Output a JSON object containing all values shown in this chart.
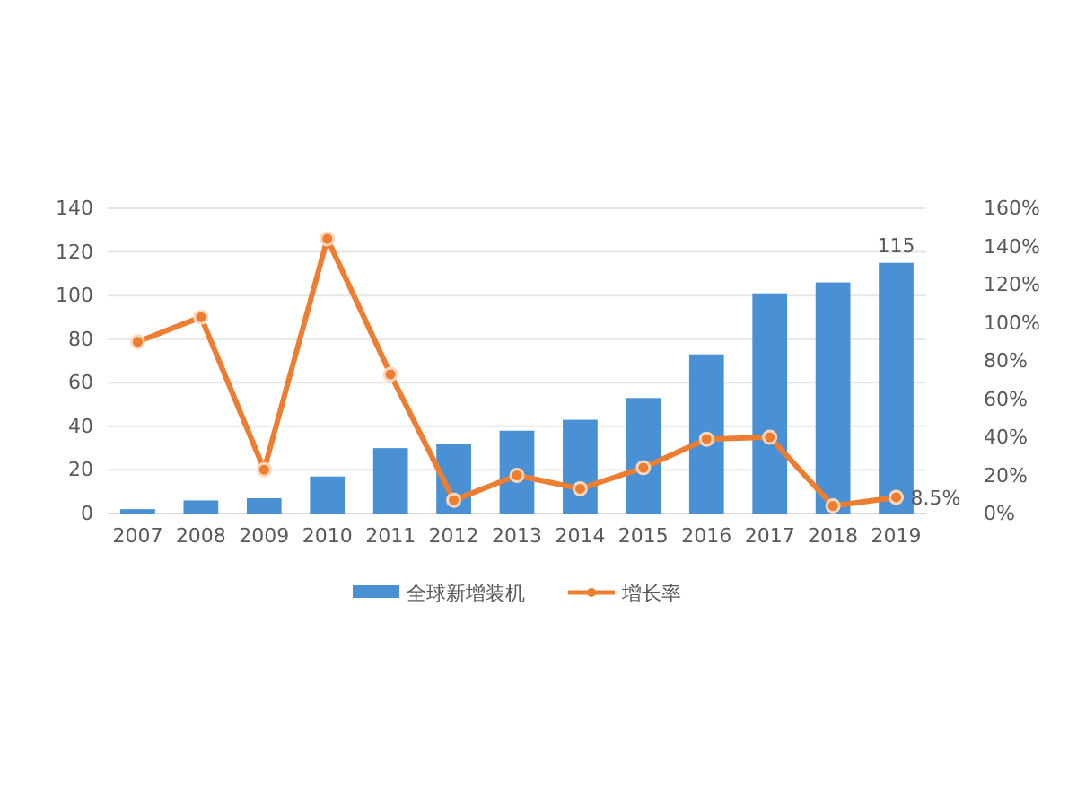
{
  "chart_data": {
    "type": "bar",
    "categories": [
      "2007",
      "2008",
      "2009",
      "2010",
      "2011",
      "2012",
      "2013",
      "2014",
      "2015",
      "2016",
      "2017",
      "2018",
      "2019"
    ],
    "series": [
      {
        "name": "全球新增装机",
        "color": "#4a90d4",
        "values": [
          2,
          6,
          7,
          17,
          30,
          32,
          38,
          43,
          53,
          73,
          101,
          106,
          115
        ],
        "value_labels": [
          null,
          null,
          null,
          null,
          null,
          null,
          null,
          null,
          null,
          null,
          null,
          null,
          "115"
        ]
      },
      {
        "name": "增长率",
        "type": "line",
        "axis": "y2",
        "color": "#ed7d31",
        "marker": "circle",
        "values": [
          90,
          103,
          23,
          144,
          73,
          7,
          20,
          13,
          24,
          39,
          40,
          4,
          8.5
        ],
        "value_labels": [
          null,
          null,
          null,
          null,
          null,
          null,
          null,
          null,
          null,
          null,
          null,
          null,
          "8.5%"
        ]
      }
    ],
    "ylim": [
      0,
      140
    ],
    "yticks": [
      0,
      20,
      40,
      60,
      80,
      100,
      120,
      140
    ],
    "y2lim": [
      0,
      160
    ],
    "y2ticks": [
      {
        "value": 0,
        "label": "0%"
      },
      {
        "value": 20,
        "label": "20%"
      },
      {
        "value": 40,
        "label": "40%"
      },
      {
        "value": 60,
        "label": "60%"
      },
      {
        "value": 80,
        "label": "80%"
      },
      {
        "value": 100,
        "label": "100%"
      },
      {
        "value": 120,
        "label": "120%"
      },
      {
        "value": 140,
        "label": "140%"
      },
      {
        "value": 160,
        "label": "160%"
      }
    ],
    "grid": "y",
    "legend": "bottom"
  }
}
